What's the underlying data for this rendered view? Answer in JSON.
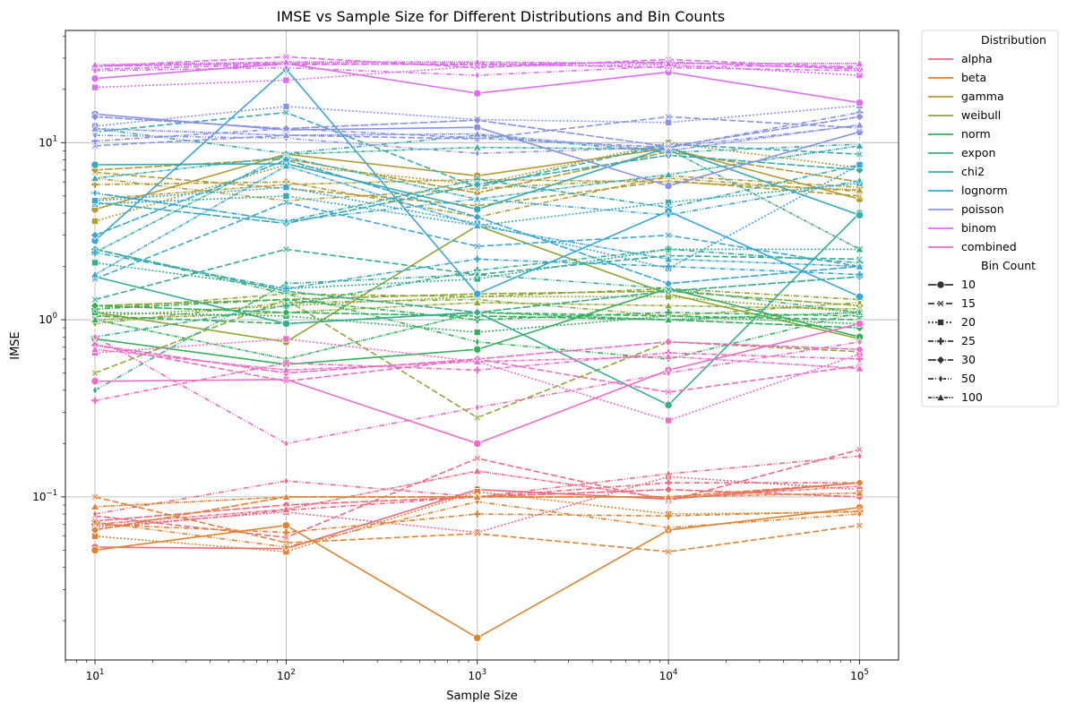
{
  "chart_data": {
    "type": "line",
    "title": "IMSE vs Sample Size for Different Distributions and Bin Counts",
    "xlabel": "Sample Size",
    "ylabel": "IMSE",
    "xscale": "log",
    "yscale": "log",
    "xlim": [
      7,
      160000
    ],
    "ylim": [
      0.012,
      43
    ],
    "grid": true,
    "x": [
      10,
      100,
      1000,
      10000,
      100000
    ],
    "x_tick_labels": [
      {
        "base": "10",
        "exp": "1",
        "value": 10
      },
      {
        "base": "10",
        "exp": "2",
        "value": 100
      },
      {
        "base": "10",
        "exp": "3",
        "value": 1000
      },
      {
        "base": "10",
        "exp": "4",
        "value": 10000
      },
      {
        "base": "10",
        "exp": "5",
        "value": 100000
      }
    ],
    "y_tick_labels": [
      {
        "base": "10",
        "exp": "−1",
        "value": 0.1
      },
      {
        "base": "10",
        "exp": "0",
        "value": 1
      },
      {
        "base": "10",
        "exp": "1",
        "value": 10
      }
    ],
    "legend": {
      "placement": "outside-right",
      "hue_title": "Distribution",
      "style_title": "Bin Count",
      "distributions": [
        {
          "name": "alpha",
          "color": "#f0697f"
        },
        {
          "name": "beta",
          "color": "#e0822f"
        },
        {
          "name": "gamma",
          "color": "#b59a34"
        },
        {
          "name": "weibull",
          "color": "#8ea733"
        },
        {
          "name": "norm",
          "color": "#34b05c"
        },
        {
          "name": "expon",
          "color": "#36ae8e"
        },
        {
          "name": "chi2",
          "color": "#37abaf"
        },
        {
          "name": "lognorm",
          "color": "#3aa6d6"
        },
        {
          "name": "poisson",
          "color": "#8b92e6"
        },
        {
          "name": "binom",
          "color": "#dd6ef0"
        },
        {
          "name": "combined",
          "color": "#f06bc6"
        }
      ],
      "bin_counts": [
        {
          "name": "10",
          "dash": "none",
          "marker": "circle"
        },
        {
          "name": "15",
          "dash": "7,3",
          "marker": "x"
        },
        {
          "name": "20",
          "dash": "2,2",
          "marker": "square"
        },
        {
          "name": "25",
          "dash": "6,2,1,2",
          "marker": "plus"
        },
        {
          "name": "30",
          "dash": "9,2",
          "marker": "diamond"
        },
        {
          "name": "50",
          "dash": "6,2,1,2,1,2",
          "marker": "thin-diamond"
        },
        {
          "name": "100",
          "dash": "4,1,1,1,1,1",
          "marker": "triangle"
        }
      ]
    },
    "series": [
      {
        "dist": "alpha",
        "bins": "10",
        "values": [
          0.052,
          0.051,
          0.11,
          0.097,
          0.12
        ]
      },
      {
        "dist": "alpha",
        "bins": "15",
        "values": [
          0.078,
          0.059,
          0.165,
          0.095,
          0.185
        ]
      },
      {
        "dist": "alpha",
        "bins": "20",
        "values": [
          0.068,
          0.082,
          0.063,
          0.13,
          0.11
        ]
      },
      {
        "dist": "alpha",
        "bins": "25",
        "values": [
          0.066,
          0.084,
          0.1,
          0.12,
          0.12
        ]
      },
      {
        "dist": "alpha",
        "bins": "30",
        "values": [
          0.073,
          0.09,
          0.1,
          0.11,
          0.1
        ]
      },
      {
        "dist": "alpha",
        "bins": "50",
        "values": [
          0.08,
          0.123,
          0.1,
          0.135,
          0.17
        ]
      },
      {
        "dist": "alpha",
        "bins": "100",
        "values": [
          0.07,
          0.085,
          0.14,
          0.098,
          0.115
        ]
      },
      {
        "dist": "beta",
        "bins": "10",
        "values": [
          0.05,
          0.069,
          0.016,
          0.065,
          0.087
        ]
      },
      {
        "dist": "beta",
        "bins": "15",
        "values": [
          0.1,
          0.055,
          0.062,
          0.049,
          0.069
        ]
      },
      {
        "dist": "beta",
        "bins": "20",
        "values": [
          0.06,
          0.049,
          0.107,
          0.08,
          0.082
        ]
      },
      {
        "dist": "beta",
        "bins": "25",
        "values": [
          0.07,
          0.063,
          0.08,
          0.078,
          0.083
        ]
      },
      {
        "dist": "beta",
        "bins": "30",
        "values": [
          0.065,
          0.1,
          0.1,
          0.1,
          0.12
        ]
      },
      {
        "dist": "beta",
        "bins": "50",
        "values": [
          0.072,
          0.052,
          0.094,
          0.067,
          0.08
        ]
      },
      {
        "dist": "beta",
        "bins": "100",
        "values": [
          0.088,
          0.1,
          0.1,
          0.1,
          0.105
        ]
      },
      {
        "dist": "gamma",
        "bins": "10",
        "values": [
          4.2,
          8.6,
          6.5,
          9.3,
          4.8
        ]
      },
      {
        "dist": "gamma",
        "bins": "15",
        "values": [
          6.8,
          5.5,
          4.4,
          6.1,
          5.0
        ]
      },
      {
        "dist": "gamma",
        "bins": "20",
        "values": [
          3.6,
          7.5,
          5.8,
          10.0,
          7.2
        ]
      },
      {
        "dist": "gamma",
        "bins": "25",
        "values": [
          5.8,
          6.0,
          3.8,
          6.5,
          5.6
        ]
      },
      {
        "dist": "gamma",
        "bins": "30",
        "values": [
          7.0,
          8.1,
          5.2,
          8.9,
          6.0
        ]
      },
      {
        "dist": "gamma",
        "bins": "50",
        "values": [
          6.3,
          4.7,
          5.5,
          6.3,
          5.3
        ]
      },
      {
        "dist": "gamma",
        "bins": "100",
        "values": [
          4.8,
          5.8,
          6.2,
          6.0,
          5.4
        ]
      },
      {
        "dist": "weibull",
        "bins": "10",
        "values": [
          1.1,
          0.75,
          3.4,
          1.4,
          0.78
        ]
      },
      {
        "dist": "weibull",
        "bins": "15",
        "values": [
          0.5,
          1.3,
          0.28,
          0.75,
          0.66
        ]
      },
      {
        "dist": "weibull",
        "bins": "20",
        "values": [
          1.05,
          1.2,
          1.35,
          1.35,
          1.1
        ]
      },
      {
        "dist": "weibull",
        "bins": "25",
        "values": [
          1.15,
          1.4,
          1.35,
          1.5,
          1.3
        ]
      },
      {
        "dist": "weibull",
        "bins": "30",
        "values": [
          1.2,
          1.3,
          1.4,
          1.45,
          1.2
        ]
      },
      {
        "dist": "weibull",
        "bins": "50",
        "values": [
          0.95,
          1.25,
          1.3,
          1.05,
          1.25
        ]
      },
      {
        "dist": "weibull",
        "bins": "100",
        "values": [
          1.0,
          1.1,
          1.25,
          1.2,
          1.15
        ]
      },
      {
        "dist": "norm",
        "bins": "10",
        "values": [
          0.78,
          0.56,
          0.68,
          1.5,
          0.8
        ]
      },
      {
        "dist": "norm",
        "bins": "15",
        "values": [
          1.05,
          0.95,
          1.1,
          1.05,
          1.0
        ]
      },
      {
        "dist": "norm",
        "bins": "20",
        "values": [
          1.1,
          1.05,
          0.85,
          1.05,
          0.95
        ]
      },
      {
        "dist": "norm",
        "bins": "25",
        "values": [
          1.15,
          1.3,
          1.0,
          1.1,
          1.05
        ]
      },
      {
        "dist": "norm",
        "bins": "30",
        "values": [
          1.2,
          1.1,
          1.05,
          1.0,
          0.9
        ]
      },
      {
        "dist": "norm",
        "bins": "50",
        "values": [
          2.5,
          1.4,
          0.75,
          0.6,
          1.1
        ]
      },
      {
        "dist": "norm",
        "bins": "100",
        "values": [
          1.0,
          0.6,
          1.1,
          1.0,
          1.1
        ]
      },
      {
        "dist": "expon",
        "bins": "10",
        "values": [
          1.75,
          0.95,
          1.1,
          0.33,
          4.0
        ]
      },
      {
        "dist": "expon",
        "bins": "15",
        "values": [
          1.3,
          2.5,
          1.8,
          2.3,
          2.2
        ]
      },
      {
        "dist": "expon",
        "bins": "20",
        "values": [
          2.1,
          1.5,
          1.7,
          2.5,
          2.5
        ]
      },
      {
        "dist": "expon",
        "bins": "25",
        "values": [
          0.8,
          1.2,
          1.9,
          2.5,
          2.1
        ]
      },
      {
        "dist": "expon",
        "bins": "30",
        "values": [
          2.5,
          1.45,
          1.1,
          1.45,
          1.75
        ]
      },
      {
        "dist": "expon",
        "bins": "50",
        "values": [
          0.4,
          1.6,
          1.8,
          1.5,
          1.1
        ]
      },
      {
        "dist": "expon",
        "bins": "100",
        "values": [
          2.4,
          8.6,
          9.4,
          9.2,
          2.5
        ]
      },
      {
        "dist": "chi2",
        "bins": "10",
        "values": [
          7.5,
          7.6,
          4.2,
          9.4,
          3.9
        ]
      },
      {
        "dist": "chi2",
        "bins": "15",
        "values": [
          11.5,
          14.8,
          5.6,
          9.8,
          8.6
        ]
      },
      {
        "dist": "chi2",
        "bins": "20",
        "values": [
          4.5,
          5.0,
          3.4,
          4.6,
          5.9
        ]
      },
      {
        "dist": "chi2",
        "bins": "25",
        "values": [
          5.2,
          3.6,
          6.2,
          4.3,
          7.5
        ]
      },
      {
        "dist": "chi2",
        "bins": "30",
        "values": [
          4.6,
          3.5,
          5.8,
          8.5,
          7.0
        ]
      },
      {
        "dist": "chi2",
        "bins": "50",
        "values": [
          12.0,
          8.7,
          11.0,
          8.8,
          9.8
        ]
      },
      {
        "dist": "chi2",
        "bins": "100",
        "values": [
          6.3,
          8.3,
          4.8,
          6.6,
          9.6
        ]
      },
      {
        "dist": "lognorm",
        "bins": "10",
        "values": [
          2.8,
          26.0,
          1.4,
          4.1,
          1.35
        ]
      },
      {
        "dist": "lognorm",
        "bins": "15",
        "values": [
          1.7,
          4.6,
          2.6,
          3.0,
          2.0
        ]
      },
      {
        "dist": "lognorm",
        "bins": "20",
        "values": [
          4.7,
          5.6,
          3.5,
          1.95,
          7.5
        ]
      },
      {
        "dist": "lognorm",
        "bins": "25",
        "values": [
          2.4,
          1.5,
          2.2,
          2.0,
          1.8
        ]
      },
      {
        "dist": "lognorm",
        "bins": "30",
        "values": [
          3.0,
          8.0,
          3.8,
          1.6,
          2.0
        ]
      },
      {
        "dist": "lognorm",
        "bins": "50",
        "values": [
          5.2,
          3.6,
          4.8,
          3.9,
          6.1
        ]
      },
      {
        "dist": "lognorm",
        "bins": "100",
        "values": [
          1.8,
          7.4,
          3.4,
          2.2,
          2.0
        ]
      },
      {
        "dist": "poisson",
        "bins": "10",
        "values": [
          14.5,
          11.8,
          12.2,
          5.7,
          11.5
        ]
      },
      {
        "dist": "poisson",
        "bins": "15",
        "values": [
          9.6,
          11.0,
          10.5,
          14.0,
          12.1
        ]
      },
      {
        "dist": "poisson",
        "bins": "20",
        "values": [
          12.4,
          16.0,
          13.5,
          13.0,
          16.2
        ]
      },
      {
        "dist": "poisson",
        "bins": "25",
        "values": [
          10.2,
          12.0,
          10.6,
          9.4,
          14.8
        ]
      },
      {
        "dist": "poisson",
        "bins": "30",
        "values": [
          14.0,
          12.0,
          13.4,
          9.5,
          14.0
        ]
      },
      {
        "dist": "poisson",
        "bins": "50",
        "values": [
          11.0,
          10.6,
          8.7,
          9.4,
          12.5
        ]
      },
      {
        "dist": "poisson",
        "bins": "100",
        "values": [
          12.0,
          11.0,
          11.2,
          9.0,
          12.6
        ]
      },
      {
        "dist": "binom",
        "bins": "10",
        "values": [
          23.0,
          28.0,
          19.0,
          25.0,
          16.8
        ]
      },
      {
        "dist": "binom",
        "bins": "15",
        "values": [
          27.0,
          30.5,
          26.5,
          29.5,
          26.5
        ]
      },
      {
        "dist": "binom",
        "bins": "20",
        "values": [
          20.5,
          22.5,
          27.0,
          27.5,
          24.0
        ]
      },
      {
        "dist": "binom",
        "bins": "25",
        "values": [
          26.0,
          27.5,
          28.0,
          26.5,
          25.5
        ]
      },
      {
        "dist": "binom",
        "bins": "30",
        "values": [
          27.0,
          28.0,
          27.5,
          28.5,
          26.0
        ]
      },
      {
        "dist": "binom",
        "bins": "50",
        "values": [
          25.5,
          26.5,
          24.0,
          27.0,
          27.0
        ]
      },
      {
        "dist": "binom",
        "bins": "100",
        "values": [
          27.5,
          28.5,
          28.5,
          28.0,
          28.0
        ]
      },
      {
        "dist": "combined",
        "bins": "10",
        "values": [
          0.45,
          0.46,
          0.2,
          0.52,
          0.95
        ]
      },
      {
        "dist": "combined",
        "bins": "15",
        "values": [
          0.72,
          0.45,
          0.6,
          0.39,
          0.55
        ]
      },
      {
        "dist": "combined",
        "bins": "20",
        "values": [
          0.65,
          0.78,
          0.58,
          0.27,
          0.64
        ]
      },
      {
        "dist": "combined",
        "bins": "25",
        "values": [
          0.35,
          0.57,
          0.52,
          0.65,
          0.6
        ]
      },
      {
        "dist": "combined",
        "bins": "30",
        "values": [
          0.72,
          0.5,
          0.6,
          0.75,
          0.68
        ]
      },
      {
        "dist": "combined",
        "bins": "50",
        "values": [
          0.8,
          0.2,
          0.32,
          0.5,
          0.75
        ]
      },
      {
        "dist": "combined",
        "bins": "100",
        "values": [
          0.68,
          0.52,
          0.58,
          0.62,
          0.53
        ]
      }
    ]
  }
}
